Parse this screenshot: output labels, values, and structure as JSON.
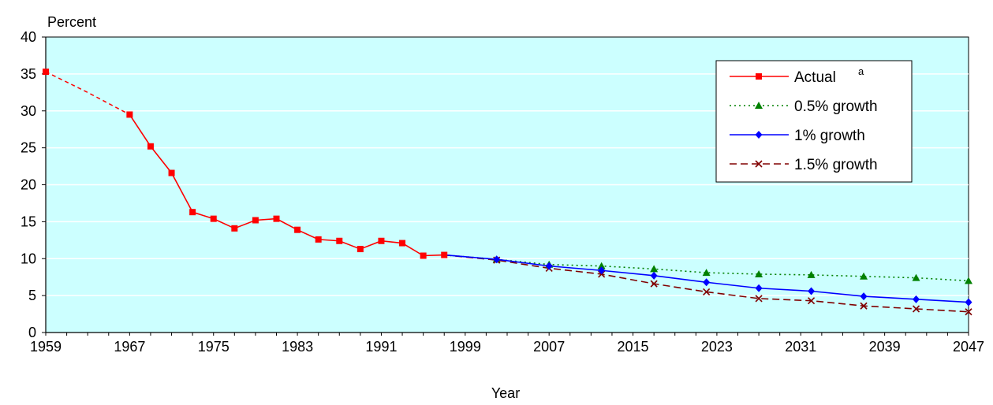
{
  "chart_data": {
    "type": "line",
    "title": "",
    "ylabel": "Percent",
    "xlabel": "Year",
    "xlim": [
      1959,
      2047
    ],
    "ylim": [
      0,
      40
    ],
    "x_ticks": [
      "1959",
      "1967",
      "1975",
      "1983",
      "1991",
      "1999",
      "2007",
      "2015",
      "2023",
      "2031",
      "2039",
      "2047"
    ],
    "y_ticks": [
      "0",
      "5",
      "10",
      "15",
      "20",
      "25",
      "30",
      "35",
      "40"
    ],
    "grid": "horizontal",
    "legend_position": "top-right",
    "colors": {
      "plot_background": "#ccffff",
      "actual": "#ff0000",
      "growth_05": "#008000",
      "growth_1": "#0000ff",
      "growth_15": "#800000"
    },
    "gap_segment": {
      "series": "Actual",
      "x": [
        1959,
        1963,
        1967
      ],
      "y": [
        35.3,
        32.5,
        29.5
      ]
    },
    "series": [
      {
        "name": "Actual",
        "superscript": "a",
        "marker": "square",
        "x": [
          1959,
          1967,
          1969,
          1971,
          1973,
          1975,
          1977,
          1979,
          1981,
          1983,
          1985,
          1987,
          1989,
          1991,
          1993,
          1995,
          1997
        ],
        "y": [
          35.3,
          29.5,
          25.2,
          21.6,
          16.3,
          15.4,
          14.1,
          15.2,
          15.4,
          13.9,
          12.6,
          12.4,
          11.3,
          12.4,
          12.1,
          10.4,
          10.5
        ]
      },
      {
        "name": "0.5% growth",
        "marker": "triangle",
        "x": [
          1997,
          2002,
          2007,
          2012,
          2017,
          2022,
          2027,
          2032,
          2037,
          2042,
          2047
        ],
        "y": [
          10.5,
          9.9,
          9.2,
          9.0,
          8.6,
          8.1,
          7.9,
          7.8,
          7.6,
          7.4,
          7.0
        ]
      },
      {
        "name": "1% growth",
        "marker": "diamond",
        "x": [
          1997,
          2002,
          2007,
          2012,
          2017,
          2022,
          2027,
          2032,
          2037,
          2042,
          2047
        ],
        "y": [
          10.5,
          9.9,
          9.0,
          8.4,
          7.7,
          6.8,
          6.0,
          5.6,
          4.9,
          4.5,
          4.1
        ]
      },
      {
        "name": "1.5% growth",
        "marker": "x",
        "x": [
          1997,
          2002,
          2007,
          2012,
          2017,
          2022,
          2027,
          2032,
          2037,
          2042,
          2047
        ],
        "y": [
          10.5,
          9.8,
          8.7,
          7.9,
          6.6,
          5.5,
          4.6,
          4.3,
          3.6,
          3.2,
          2.8
        ]
      }
    ]
  }
}
